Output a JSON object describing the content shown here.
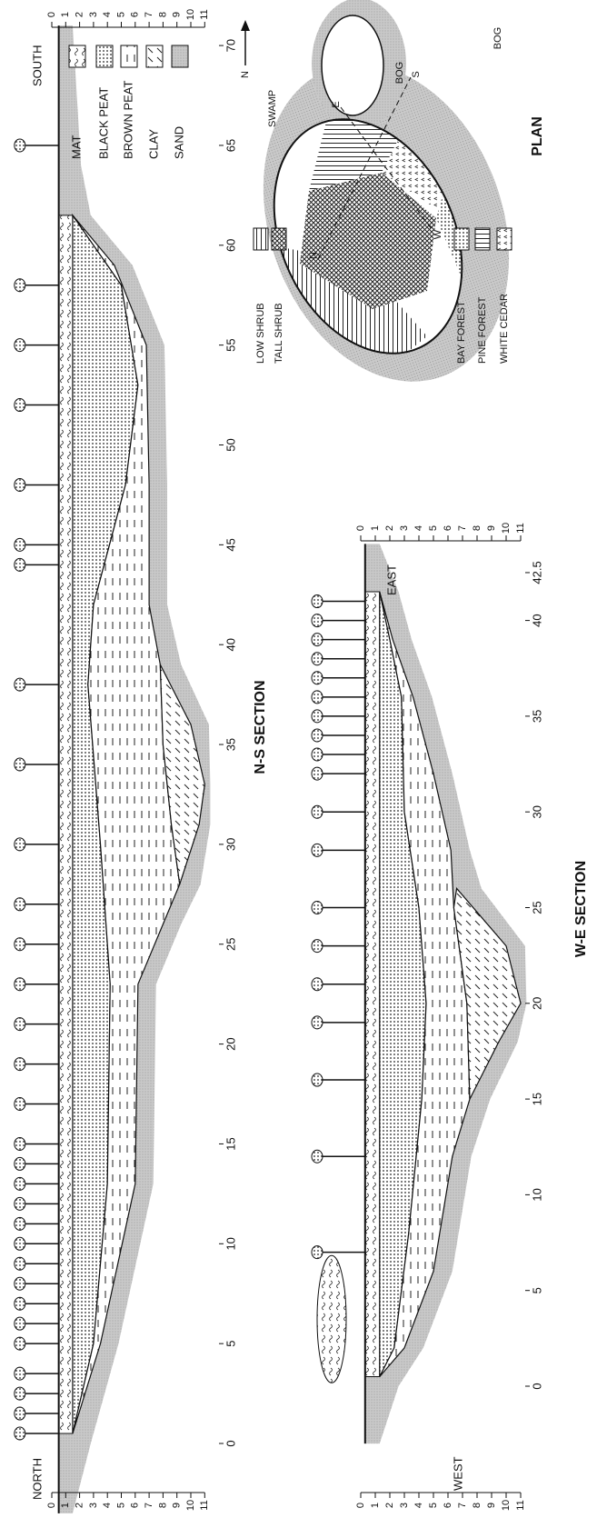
{
  "ns_section": {
    "title": "N-S SECTION",
    "left_label": "NORTH",
    "right_label": "SOUTH",
    "distance_ticks": [
      0,
      5,
      10,
      15,
      20,
      25,
      30,
      35,
      40,
      45,
      50,
      55,
      60,
      65,
      70
    ],
    "depth_ticks": [
      0,
      1,
      2,
      3,
      4,
      5,
      6,
      7,
      8,
      9,
      10,
      11
    ]
  },
  "we_section": {
    "title": "W-E SECTION",
    "left_label": "WEST",
    "right_label": "EAST",
    "distance_ticks": [
      0,
      5,
      10,
      15,
      20,
      25,
      30,
      35,
      40,
      42.5
    ],
    "depth_ticks": [
      0,
      1,
      2,
      3,
      4,
      5,
      6,
      7,
      8,
      9,
      10,
      11
    ]
  },
  "layer_legend": [
    "MAT",
    "BLACK PEAT",
    "BROWN PEAT",
    "CLAY",
    "SAND"
  ],
  "plan": {
    "title": "PLAN",
    "north": "N",
    "swamp": "SWAMP",
    "bog_north": "BOG",
    "bog_south": "BOG",
    "compass": {
      "n": "N",
      "e": "E",
      "s": "S",
      "w": "W"
    },
    "legend": [
      "LOW SHRUB",
      "TALL SHRUB",
      "BAY FOREST",
      "PINE FOREST",
      "WHITE CEDAR"
    ]
  }
}
